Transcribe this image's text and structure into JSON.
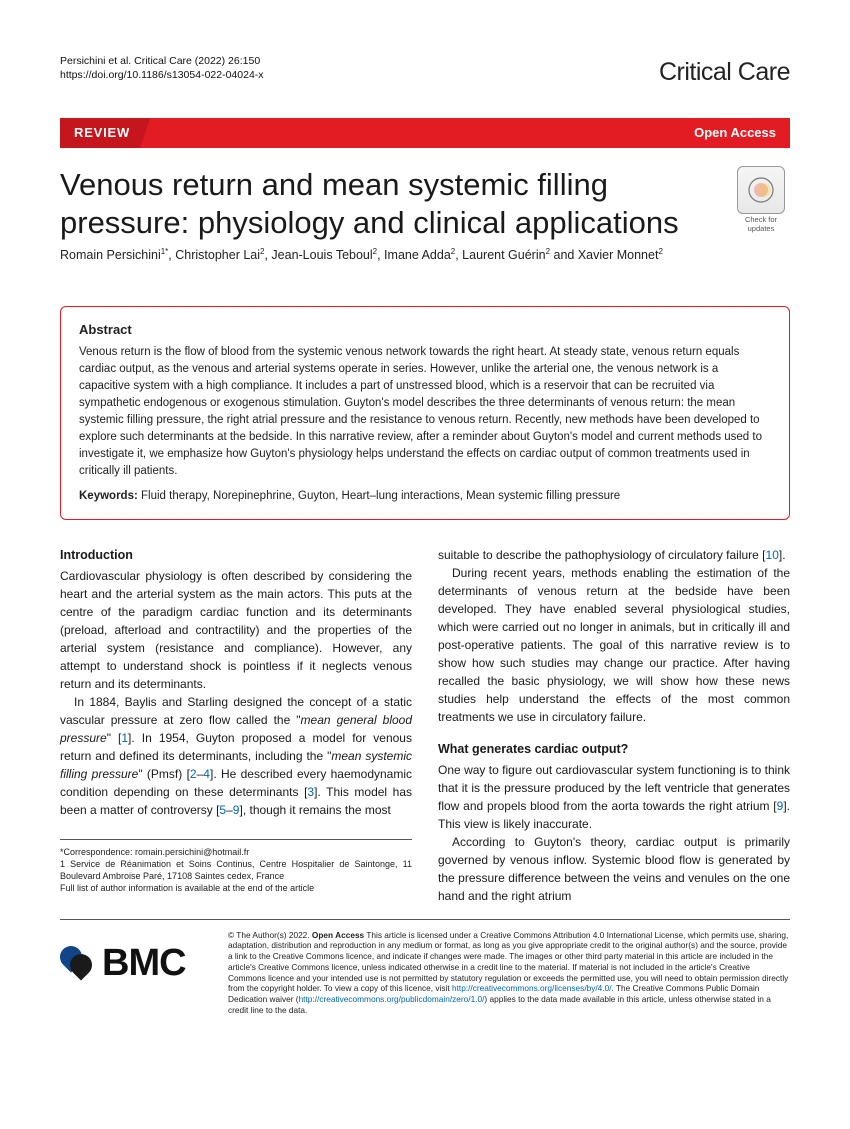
{
  "header": {
    "citation_line1": "Persichini et al. Critical Care    (2022) 26:150",
    "citation_line2": "https://doi.org/10.1186/s13054-022-04024-x",
    "journal_name": "Critical Care"
  },
  "banner": {
    "article_type": "REVIEW",
    "access": "Open Access"
  },
  "check_updates": {
    "label": "Check for updates"
  },
  "article": {
    "title": "Venous return and mean systemic filling pressure: physiology and clinical applications",
    "authors_html": "Romain Persichini<sup>1*</sup>, Christopher Lai<sup>2</sup>, Jean-Louis Teboul<sup>2</sup>, Imane Adda<sup>2</sup>, Laurent Guérin<sup>2</sup> and Xavier Monnet<sup>2</sup>"
  },
  "abstract": {
    "heading": "Abstract",
    "text": "Venous return is the flow of blood from the systemic venous network towards the right heart. At steady state, venous return equals cardiac output, as the venous and arterial systems operate in series. However, unlike the arterial one, the venous network is a capacitive system with a high compliance. It includes a part of unstressed blood, which is a reservoir that can be recruited via sympathetic endogenous or exogenous stimulation. Guyton's model describes the three determinants of venous return: the mean systemic filling pressure, the right atrial pressure and the resistance to venous return. Recently, new methods have been developed to explore such determinants at the bedside. In this narrative review, after a reminder about Guyton's model and current methods used to investigate it, we emphasize how Guyton's physiology helps understand the effects on cardiac output of common treatments used in critically ill patients.",
    "keywords_label": "Keywords:",
    "keywords": "Fluid therapy, Norepinephrine, Guyton, Heart–lung interactions, Mean systemic filling pressure"
  },
  "body": {
    "left": {
      "h1": "Introduction",
      "p1": "Cardiovascular physiology is often described by considering the heart and the arterial system as the main actors. This puts at the centre of the paradigm cardiac function and its determinants (preload, afterload and contractility) and the properties of the arterial system (resistance and compliance). However, any attempt to understand shock is pointless if it neglects venous return and its determinants.",
      "p2a": "In 1884, Baylis and Starling designed the concept of a static vascular pressure at zero flow called the \"",
      "p2_em": "mean general blood pressure",
      "p2b": "\" [",
      "ref1": "1",
      "p2c": "]. In 1954, Guyton proposed a model for venous return and defined its determinants, including the \"",
      "p2_em2": "mean systemic filling pressure",
      "p2d": "\" (Pmsf) [",
      "ref2": "2",
      "p2e": "–",
      "ref3": "4",
      "p2f": "]. He described every haemodynamic condition depending on these determinants [",
      "ref4": "3",
      "p2g": "]. This model has been a matter of controversy [",
      "ref5": "5",
      "p2h": "–",
      "ref6": "9",
      "p2i": "], though it remains the most"
    },
    "right": {
      "p1a": "suitable to describe the pathophysiology of circulatory failure [",
      "ref1": "10",
      "p1b": "].",
      "p2": "During recent years, methods enabling the estimation of the determinants of venous return at the bedside have been developed. They have enabled several physiological studies, which were carried out no longer in animals, but in critically ill and post-operative patients. The goal of this narrative review is to show how such studies may change our practice. After having recalled the basic physiology, we will show how these news studies help understand the effects of the most common treatments we use in circulatory failure.",
      "h2": "What generates cardiac output?",
      "p3a": "One way to figure out cardiovascular system functioning is to think that it is the pressure produced by the left ventricle that generates flow and propels blood from the aorta towards the right atrium [",
      "ref2": "9",
      "p3b": "]. This view is likely inaccurate.",
      "p4": "According to Guyton's theory, cardiac output is primarily governed by venous inflow. Systemic blood flow is generated by the pressure difference between the veins and venules on the one hand and the right atrium"
    }
  },
  "correspondence": {
    "line1": "*Correspondence:  romain.persichini@hotmail.fr",
    "line2": "1 Service de Réanimation et Soins Continus, Centre Hospitalier de Saintonge, 11 Boulevard Ambroise Paré, 17108 Saintes cedex, France",
    "line3": "Full list of author information is available at the end of the article"
  },
  "footer": {
    "bmc": "BMC",
    "license_prefix": "© The Author(s) 2022. ",
    "license_bold": "Open Access",
    "license_text": " This article is licensed under a Creative Commons Attribution 4.0 International License, which permits use, sharing, adaptation, distribution and reproduction in any medium or format, as long as you give appropriate credit to the original author(s) and the source, provide a link to the Creative Commons licence, and indicate if changes were made. The images or other third party material in this article are included in the article's Creative Commons licence, unless indicated otherwise in a credit line to the material. If material is not included in the article's Creative Commons licence and your intended use is not permitted by statutory regulation or exceeds the permitted use, you will need to obtain permission directly from the copyright holder. To view a copy of this licence, visit ",
    "license_link1": "http://creativecommons.org/licenses/by/4.0/",
    "license_text2": ". The Creative Commons Public Domain Dedication waiver (",
    "license_link2": "http://creativecommons.org/publicdomain/zero/1.0/",
    "license_text3": ") applies to the data made available in this article, unless otherwise stated in a credit line to the data."
  },
  "colors": {
    "brand_red": "#e31b23",
    "link_blue": "#0066b3"
  }
}
